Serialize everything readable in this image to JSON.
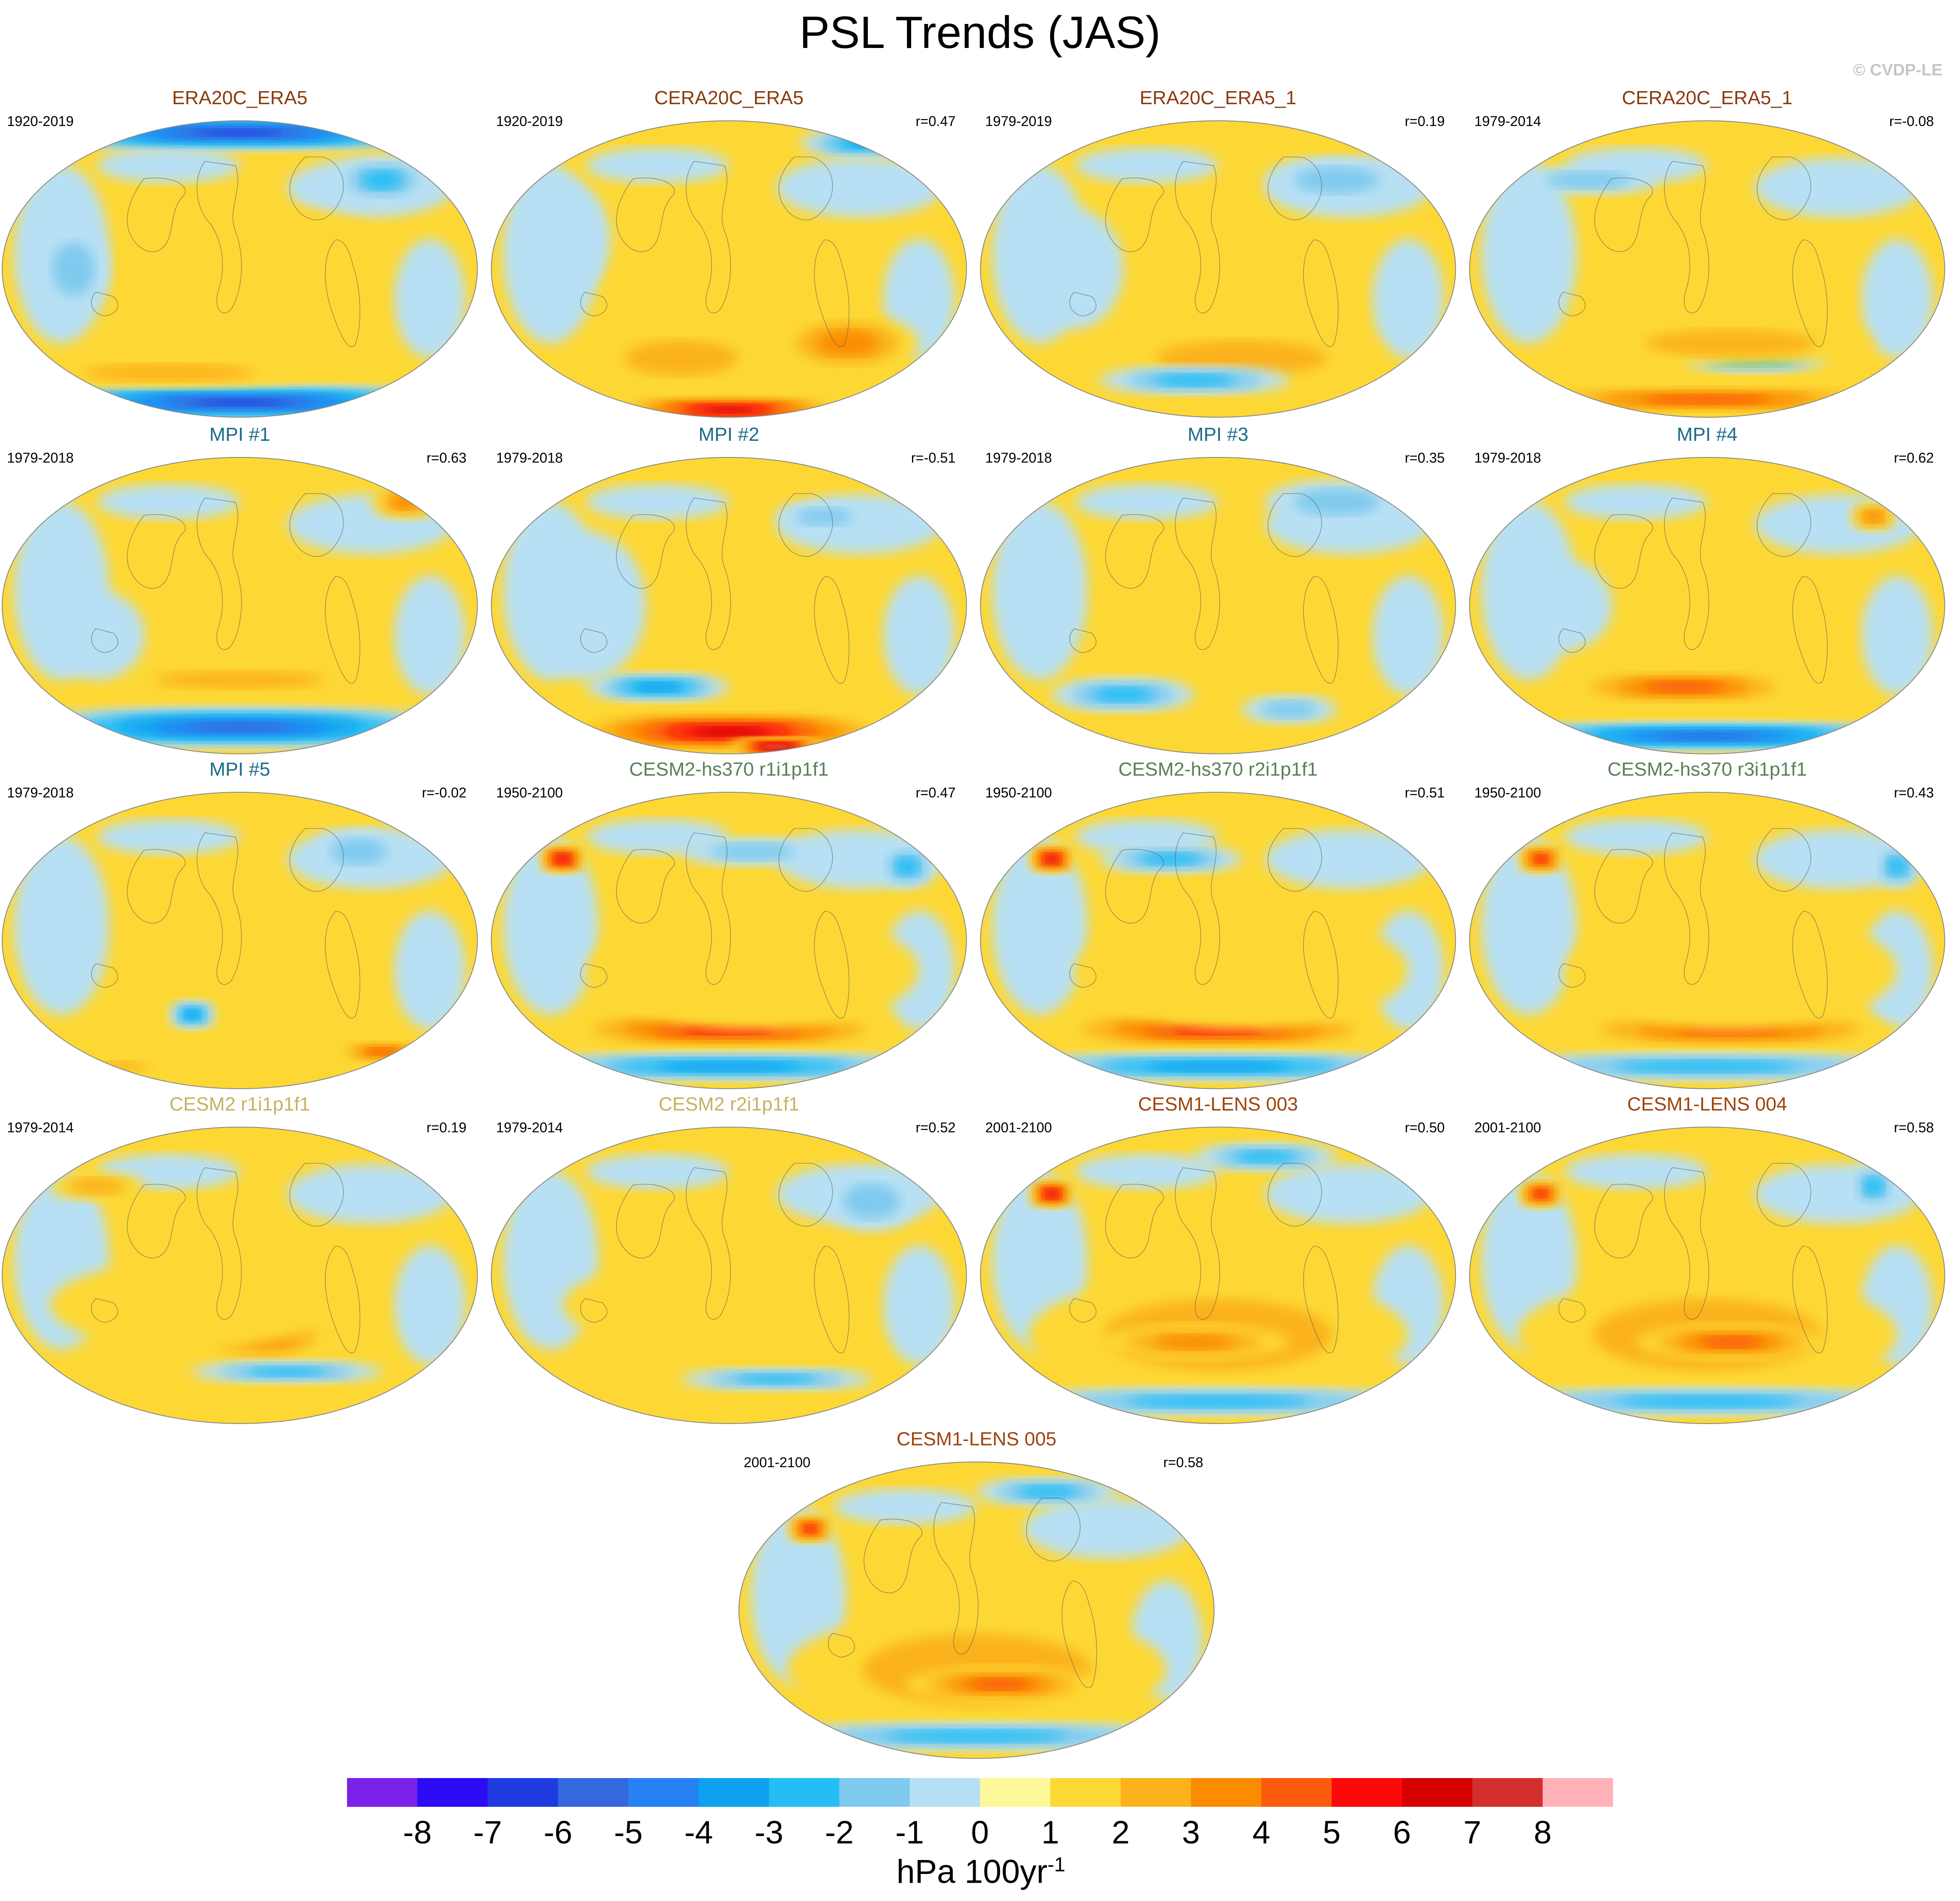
{
  "title": "PSL Trends (JAS)",
  "copyright": "© CVDP-LE",
  "units": {
    "base": "hPa 100yr",
    "exponent": "-1"
  },
  "panels": [
    {
      "id": "p1",
      "title": "ERA20C_ERA5",
      "period": "1920-2019",
      "corr": "",
      "title_color": "#8b3a0e"
    },
    {
      "id": "p2",
      "title": "CERA20C_ERA5",
      "period": "1920-2019",
      "corr": "r=0.47",
      "title_color": "#8b3a0e"
    },
    {
      "id": "p3",
      "title": "ERA20C_ERA5_1",
      "period": "1979-2019",
      "corr": "r=0.19",
      "title_color": "#8b3a0e"
    },
    {
      "id": "p4",
      "title": "CERA20C_ERA5_1",
      "period": "1979-2014",
      "corr": "r=-0.08",
      "title_color": "#8b3a0e"
    },
    {
      "id": "p5",
      "title": "MPI #1",
      "period": "1979-2018",
      "corr": "r=0.63",
      "title_color": "#1a6b8a"
    },
    {
      "id": "p6",
      "title": "MPI #2",
      "period": "1979-2018",
      "corr": "r=-0.51",
      "title_color": "#1a6b8a"
    },
    {
      "id": "p7",
      "title": "MPI #3",
      "period": "1979-2018",
      "corr": "r=0.35",
      "title_color": "#1a6b8a"
    },
    {
      "id": "p8",
      "title": "MPI #4",
      "period": "1979-2018",
      "corr": "r=0.62",
      "title_color": "#1a6b8a"
    },
    {
      "id": "p9",
      "title": "MPI #5",
      "period": "1979-2018",
      "corr": "r=-0.02",
      "title_color": "#1a6b8a"
    },
    {
      "id": "p10",
      "title": "CESM2-hs370 r1i1p1f1",
      "period": "1950-2100",
      "corr": "r=0.47",
      "title_color": "#5b7f5a"
    },
    {
      "id": "p11",
      "title": "CESM2-hs370 r2i1p1f1",
      "period": "1950-2100",
      "corr": "r=0.51",
      "title_color": "#5b7f5a"
    },
    {
      "id": "p12",
      "title": "CESM2-hs370 r3i1p1f1",
      "period": "1950-2100",
      "corr": "r=0.43",
      "title_color": "#5b7f5a"
    },
    {
      "id": "p13",
      "title": "CESM2 r1i1p1f1",
      "period": "1979-2014",
      "corr": "r=0.19",
      "title_color": "#c8b060"
    },
    {
      "id": "p14",
      "title": "CESM2 r2i1p1f1",
      "period": "1979-2014",
      "corr": "r=0.52",
      "title_color": "#c8b060"
    },
    {
      "id": "p15",
      "title": "CESM1-LENS 003",
      "period": "2001-2100",
      "corr": "r=0.50",
      "title_color": "#a0420e"
    },
    {
      "id": "p16",
      "title": "CESM1-LENS 004",
      "period": "2001-2100",
      "corr": "r=0.58",
      "title_color": "#a0420e"
    },
    {
      "id": "p17",
      "title": "CESM1-LENS 005",
      "period": "2001-2100",
      "corr": "r=0.58",
      "title_color": "#a0420e"
    }
  ],
  "chart_data": {
    "type": "heatmap",
    "title": "PSL Trends (JAS)",
    "colorbar": {
      "levels": [
        -8,
        -7,
        -6,
        -5,
        -4,
        -3,
        -2,
        -1,
        0,
        1,
        2,
        3,
        4,
        5,
        6,
        7,
        8
      ],
      "tick_labels": [
        "-8",
        "-7",
        "-6",
        "-5",
        "-4",
        "-3",
        "-2",
        "-1",
        "0",
        "1",
        "2",
        "3",
        "4",
        "5",
        "6",
        "7",
        "8"
      ],
      "colors": [
        "#7b22e8",
        "#2b0cf5",
        "#1f3be0",
        "#3568de",
        "#2681f2",
        "#0ea1f0",
        "#24bef5",
        "#7fcaee",
        "#b8e0f4",
        "#fdf99a",
        "#fdd835",
        "#fbb21c",
        "#fb8c00",
        "#fc5a0c",
        "#fc0a0a",
        "#d60000",
        "#d32f2f",
        "#ffb3b8"
      ],
      "label": "hPa 100yr-1"
    }
  }
}
